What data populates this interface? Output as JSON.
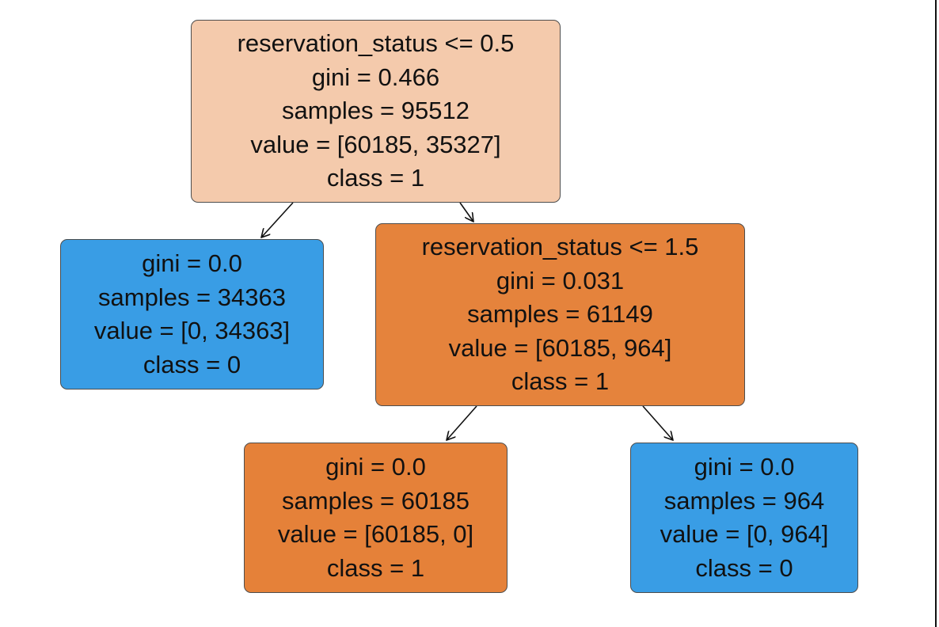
{
  "tree": {
    "nodes": [
      {
        "id": "root",
        "split": "reservation_status <= 0.5",
        "gini": "gini = 0.466",
        "samples": "samples = 95512",
        "value": "value = [60185, 35327]",
        "class": "class = 1",
        "fill": "#f4caac"
      },
      {
        "id": "left",
        "split": "",
        "gini": "gini = 0.0",
        "samples": "samples = 34363",
        "value": "value = [0, 34363]",
        "class": "class = 0",
        "fill": "#399de5"
      },
      {
        "id": "right",
        "split": "reservation_status <= 1.5",
        "gini": "gini = 0.031",
        "samples": "samples = 61149",
        "value": "value = [60185, 964]",
        "class": "class = 1",
        "fill": "#e5833c"
      },
      {
        "id": "right-left",
        "split": "",
        "gini": "gini = 0.0",
        "samples": "samples = 60185",
        "value": "value = [60185, 0]",
        "class": "class = 1",
        "fill": "#e58139"
      },
      {
        "id": "right-right",
        "split": "",
        "gini": "gini = 0.0",
        "samples": "samples = 964",
        "value": "value = [0, 964]",
        "class": "class = 0",
        "fill": "#399de5"
      }
    ],
    "edges": [
      {
        "from": "root",
        "to": "left"
      },
      {
        "from": "root",
        "to": "right"
      },
      {
        "from": "right",
        "to": "right-left"
      },
      {
        "from": "right",
        "to": "right-right"
      }
    ]
  }
}
